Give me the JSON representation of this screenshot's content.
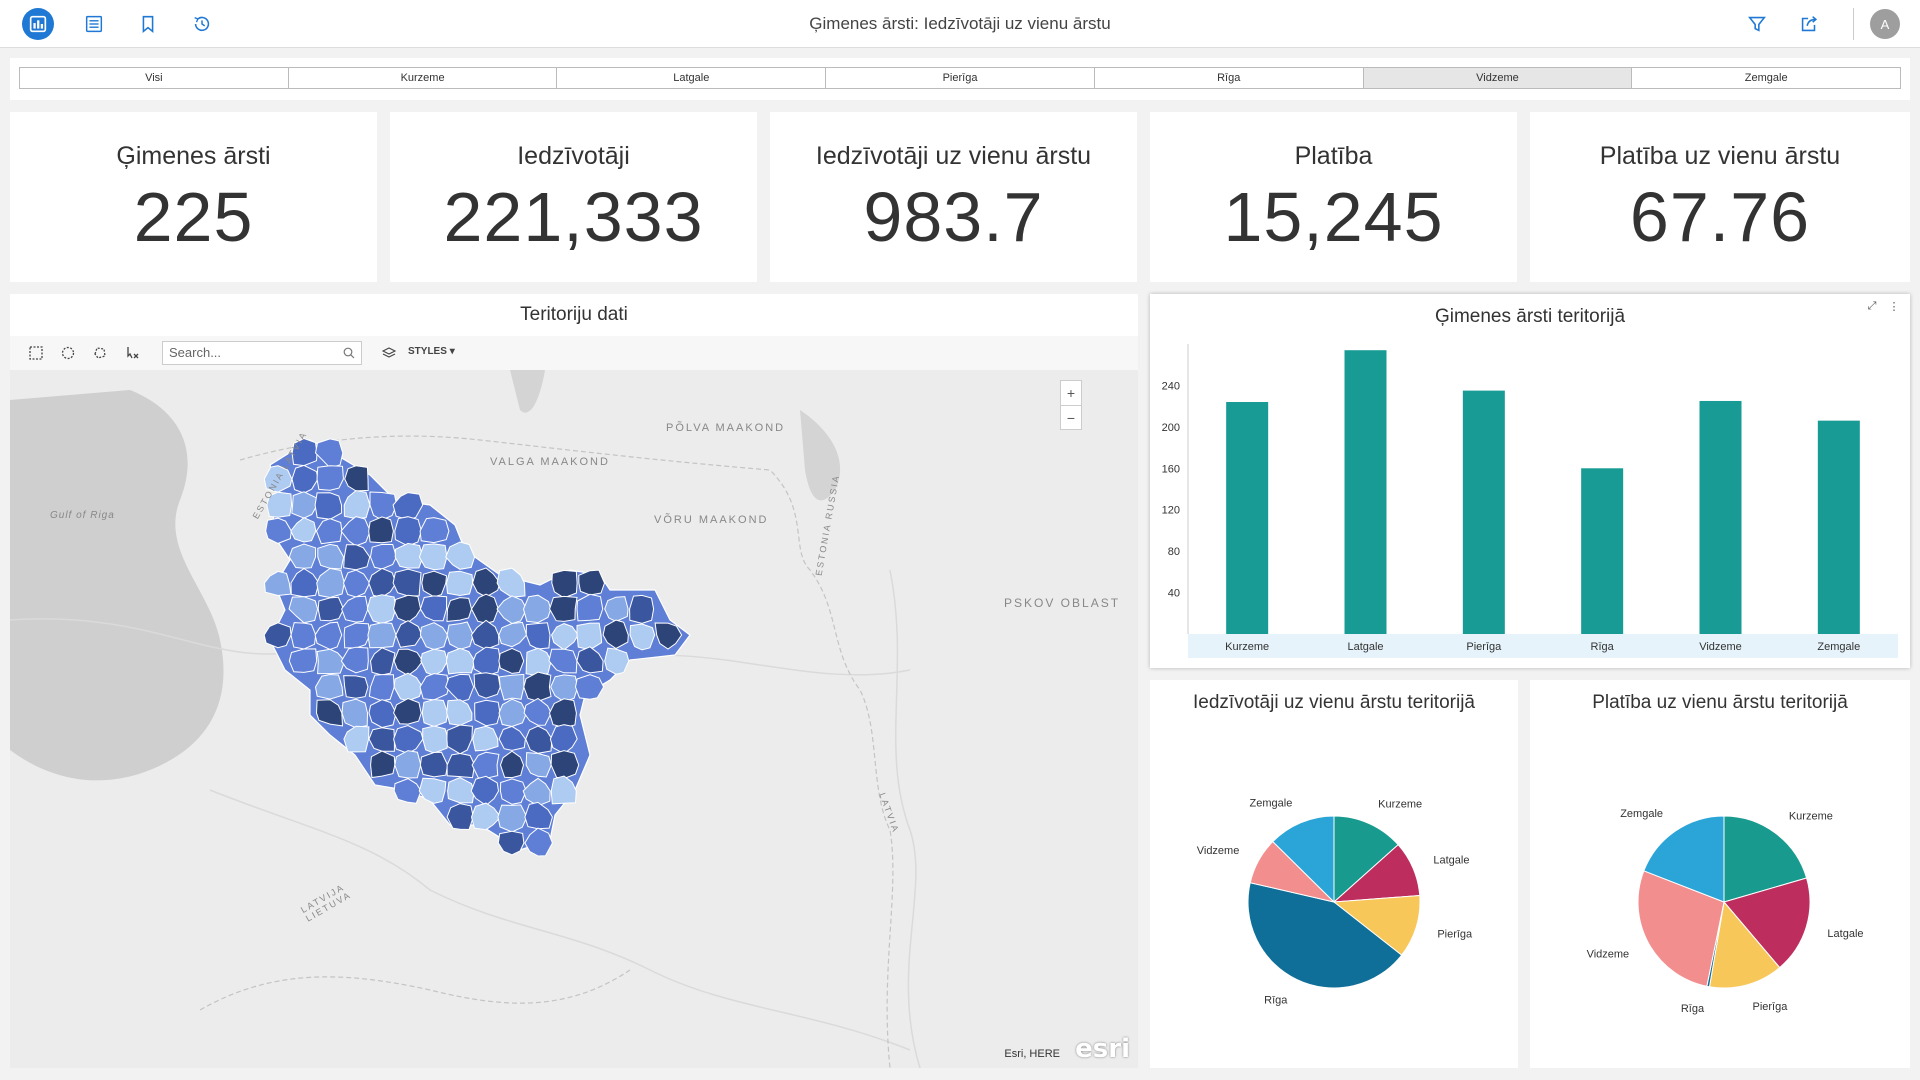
{
  "header": {
    "title": "Ģimenes ārsti: Iedzīvotāji uz vienu ārstu",
    "avatar_initial": "A",
    "icons": [
      "dashboard-icon",
      "list-icon",
      "bookmark-icon",
      "history-icon",
      "filter-icon",
      "share-icon"
    ]
  },
  "filters": {
    "tabs": [
      "Visi",
      "Kurzeme",
      "Latgale",
      "Pierīga",
      "Rīga",
      "Vidzeme",
      "Zemgale"
    ],
    "selected": "Vidzeme"
  },
  "kpis": [
    {
      "title": "Ģimenes ārsti",
      "value": "225"
    },
    {
      "title": "Iedzīvotāji",
      "value": "221,333"
    },
    {
      "title": "Iedzīvotāji uz vienu ārstu",
      "value": "983.7"
    },
    {
      "title": "Platība",
      "value": "15,245"
    },
    {
      "title": "Platība uz vienu ārstu",
      "value": "67.76"
    }
  ],
  "map": {
    "title": "Teritoriju dati",
    "search_placeholder": "Search...",
    "styles_label": "STYLES",
    "zoom_in": "+",
    "zoom_out": "−",
    "attribution": "Esri, HERE",
    "logo": "esri",
    "labels": {
      "polva": "PÕLVA MAAKOND",
      "valga": "VALGA MAAKOND",
      "voru": "VÕRU MAAKOND",
      "pskov": "PSKOV OBLAST",
      "gulf": "Gulf of Riga",
      "estonia_latvia": "ESTONIA LATVIA",
      "estonia_russia": "ESTONIA RUSSIA",
      "latvia_e": "LATVIA",
      "latvia_lietuva": "LATVIJA LIETUVA"
    },
    "colors": {
      "water": "#cfcfcf",
      "land": "#ececec",
      "choropleth": [
        "#aecbf2",
        "#86a9e6",
        "#5f7fd6",
        "#4b6bc2",
        "#3a569e",
        "#2c4478"
      ]
    }
  },
  "bar_chart": {
    "title": "Ģimenes ārsti teritorijā",
    "color": "#179b94"
  },
  "pie_inhab": {
    "title": "Iedzīvotāji uz vienu ārstu teritorijā"
  },
  "pie_area": {
    "title": "Platība uz vienu ārstu teritorijā"
  },
  "chart_data": [
    {
      "type": "bar",
      "title": "Ģimenes ārsti teritorijā",
      "categories": [
        "Kurzeme",
        "Latgale",
        "Pierīga",
        "Rīga",
        "Vidzeme",
        "Zemgale"
      ],
      "values": [
        224,
        274,
        235,
        160,
        225,
        206
      ],
      "yticks": [
        40,
        80,
        120,
        160,
        200,
        240
      ],
      "ylim": [
        0,
        280
      ],
      "grid": false,
      "legend": "none"
    },
    {
      "type": "pie",
      "title": "Iedzīvotāji uz vienu ārstu teritorijā",
      "labels": [
        "Kurzeme",
        "Latgale",
        "Pierīga",
        "Rīga",
        "Vidzeme",
        "Zemgale"
      ],
      "values": [
        13.4,
        10.4,
        11.8,
        43.0,
        8.8,
        12.6
      ],
      "colors": [
        "#189a8f",
        "#bd2e5e",
        "#f7c75a",
        "#0f6f99",
        "#f28e8e",
        "#2ba4d8"
      ]
    },
    {
      "type": "pie",
      "title": "Platība uz vienu ārstu teritorijā",
      "labels": [
        "Kurzeme",
        "Latgale",
        "Pierīga",
        "Rīga",
        "Vidzeme",
        "Zemgale"
      ],
      "values": [
        20.5,
        18.3,
        13.9,
        0.5,
        27.7,
        19.1
      ],
      "colors": [
        "#189a8f",
        "#bd2e5e",
        "#f7c75a",
        "#0f6f99",
        "#f28e8e",
        "#2ba4d8"
      ]
    }
  ]
}
